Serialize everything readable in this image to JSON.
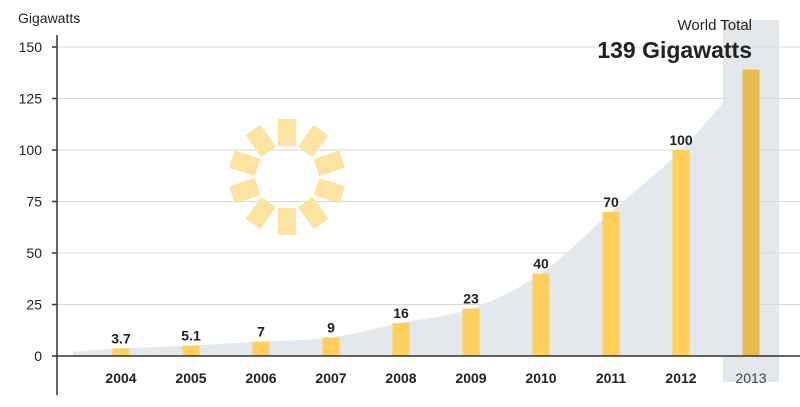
{
  "chart_data": {
    "type": "bar",
    "ylabel": "Gigawatts",
    "ylim": [
      0,
      150
    ],
    "yticks": [
      0,
      25,
      50,
      75,
      100,
      125,
      150
    ],
    "categories": [
      "2004",
      "2005",
      "2006",
      "2007",
      "2008",
      "2009",
      "2010",
      "2011",
      "2012",
      "2013"
    ],
    "values": [
      3.7,
      5.1,
      7,
      9,
      16,
      23,
      40,
      70,
      100,
      139
    ],
    "data_labels": [
      "3.7",
      "5.1",
      "7",
      "9",
      "16",
      "23",
      "40",
      "70",
      "100",
      ""
    ],
    "grid": true,
    "callout": {
      "label": "World Total",
      "value": "139 Gigawatts"
    },
    "colors": {
      "bar": "#fecf5a",
      "bar_highlight": "#e3bd52",
      "area": "#e3e8ec",
      "highlight_band": "#e3e7ea",
      "sun": "#fde3a0",
      "grid": "#d9d9d9",
      "axis": "#333333"
    },
    "icons": [
      "sun-icon"
    ]
  }
}
